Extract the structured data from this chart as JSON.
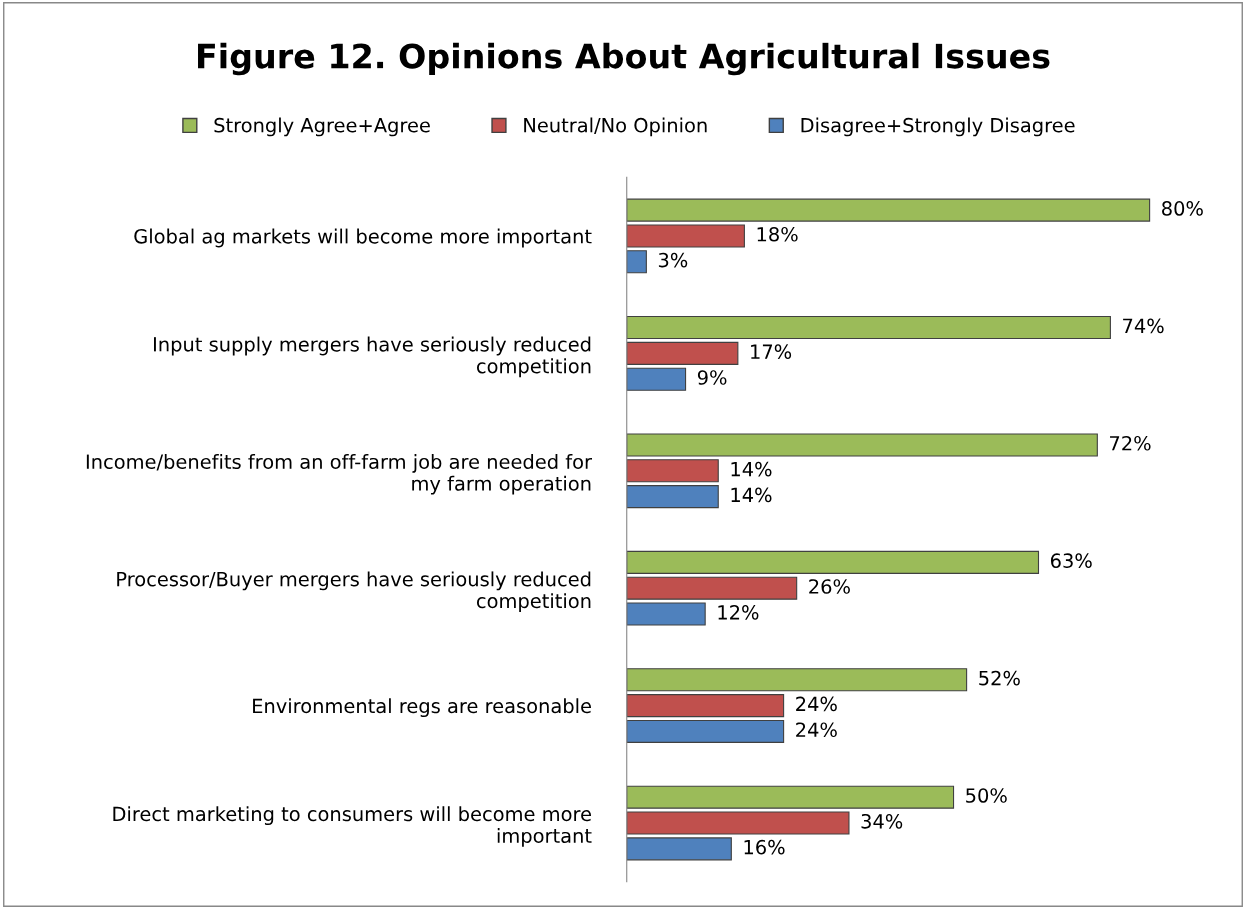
{
  "chart_data": {
    "type": "bar",
    "orientation": "horizontal",
    "title": "Figure 12. Opinions About Agricultural Issues",
    "categories": [
      "Global ag markets will become more important",
      "Input supply mergers have seriously reduced\ncompetition",
      "Income/benefits from an off-farm job are needed for\nmy farm operation",
      "Processor/Buyer mergers have seriously reduced\ncompetition",
      "Environmental regs are reasonable",
      "Direct marketing to consumers will become more\nimportant"
    ],
    "series": [
      {
        "name": "Strongly Agree+Agree",
        "color": "#9bbb59",
        "values": [
          80,
          74,
          72,
          63,
          52,
          50
        ],
        "value_labels": [
          "80%",
          "74%",
          "72%",
          "63%",
          "52%",
          "50%"
        ]
      },
      {
        "name": "Neutral/No Opinion",
        "color": "#c0504d",
        "values": [
          18,
          17,
          14,
          26,
          24,
          34
        ],
        "value_labels": [
          "18%",
          "17%",
          "14%",
          "26%",
          "24%",
          "34%"
        ]
      },
      {
        "name": "Disagree+Strongly Disagree",
        "color": "#4f81bd",
        "values": [
          3,
          9,
          14,
          12,
          24,
          16
        ],
        "value_labels": [
          "3%",
          "9%",
          "14%",
          "12%",
          "24%",
          "16%"
        ]
      }
    ],
    "legend": "top",
    "grid": false,
    "tick_labels": "y"
  }
}
